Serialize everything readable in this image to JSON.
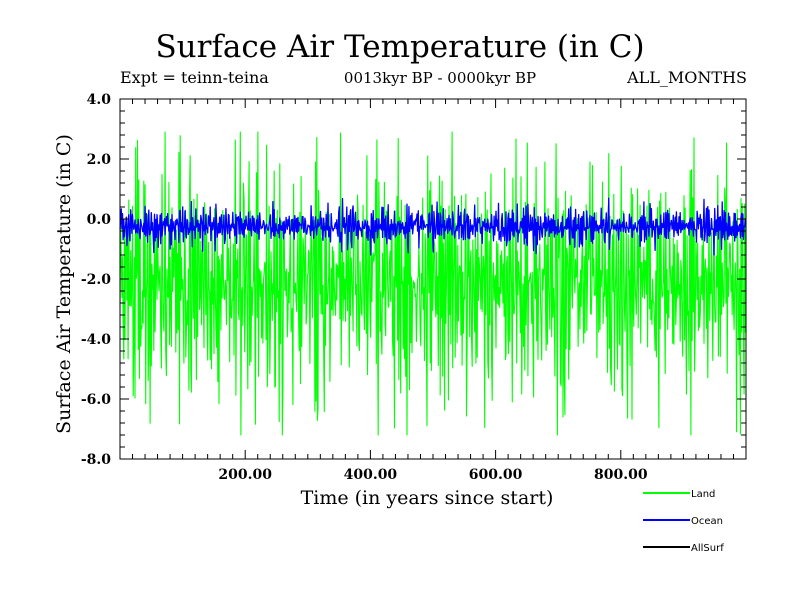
{
  "chart_data": {
    "type": "line",
    "title": "Surface Air Temperature (in C)",
    "expt_label": "Expt = teinn-teina",
    "period_label": "0013kyr BP - 0000kyr BP",
    "months_label": "ALL_MONTHS",
    "xlabel": "Time (in years since start)",
    "ylabel": "Surface Air Temperature (in C)",
    "xlim": [
      0,
      1000
    ],
    "ylim": [
      -8.0,
      4.0
    ],
    "x_ticks": [
      200,
      400,
      600,
      800
    ],
    "x_tick_labels": [
      "200.00",
      "400.00",
      "600.00",
      "800.00"
    ],
    "y_ticks": [
      4.0,
      2.0,
      0.0,
      -2.0,
      -4.0,
      -6.0,
      -8.0
    ],
    "y_tick_labels": [
      "4.0",
      "2.0",
      "0.0",
      "-2.0",
      "-4.0",
      "-6.0",
      "-8.0"
    ],
    "legend_position": "bottom-right, below plot",
    "series": [
      {
        "name": "Land",
        "color": "#00ff00",
        "n_points": 1000,
        "mean": -2.2,
        "band_upper_approx": 1.5,
        "band_lower_approx": -5.8,
        "peak_max_approx": 2.9,
        "peak_min_approx": -7.2
      },
      {
        "name": "Ocean",
        "color": "#0000ff",
        "n_points": 1000,
        "mean": -0.25,
        "band_upper_approx": 0.3,
        "band_lower_approx": -0.8,
        "peak_max_approx": 0.7,
        "peak_min_approx": -1.2
      },
      {
        "name": "AllSurf",
        "color": "#000000",
        "n_points": 0,
        "note": "legend only; not visibly drawn"
      }
    ]
  }
}
